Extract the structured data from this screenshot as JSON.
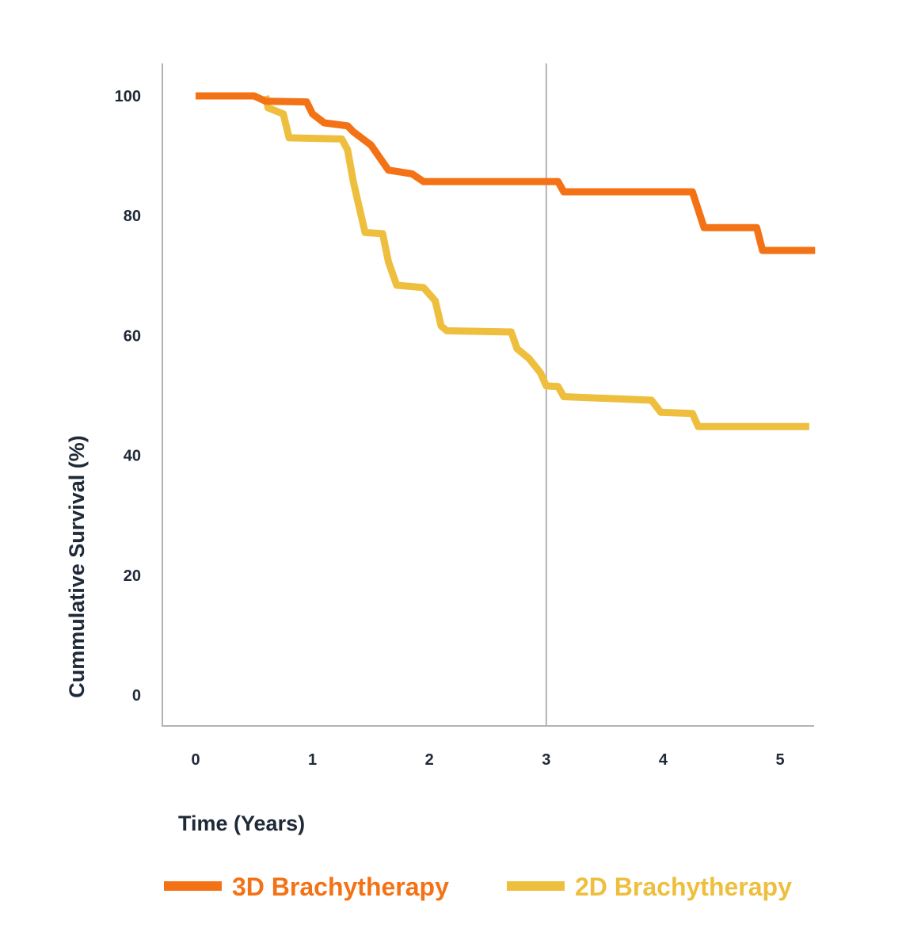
{
  "chart_data": {
    "type": "line",
    "title": "",
    "xlabel": "Time (Years)",
    "ylabel": "Cummulative Survival (%)",
    "xlim": [
      0,
      5.3
    ],
    "ylim": [
      0,
      100
    ],
    "xticks": [
      "0",
      "1",
      "2",
      "3",
      "4",
      "5"
    ],
    "yticks": [
      "0",
      "20",
      "40",
      "60",
      "80",
      "100"
    ],
    "grid": false,
    "reference_line_x": 3,
    "legend_position": "bottom",
    "series": [
      {
        "name": "3D Brachytherapy",
        "color": "#F47216",
        "points": [
          [
            0,
            100
          ],
          [
            0.5,
            100
          ],
          [
            0.6,
            99.1
          ],
          [
            0.95,
            99
          ],
          [
            1.0,
            97
          ],
          [
            1.1,
            95.5
          ],
          [
            1.3,
            95
          ],
          [
            1.35,
            94
          ],
          [
            1.5,
            91.8
          ],
          [
            1.65,
            87.6
          ],
          [
            1.85,
            87
          ],
          [
            1.95,
            85.7
          ],
          [
            3.1,
            85.7
          ],
          [
            3.15,
            84
          ],
          [
            4.25,
            84
          ],
          [
            4.3,
            81
          ],
          [
            4.35,
            78
          ],
          [
            4.8,
            78
          ],
          [
            4.85,
            74.2
          ],
          [
            5.3,
            74.2
          ]
        ]
      },
      {
        "name": "2D Brachytherapy",
        "color": "#EEBF3E",
        "points": [
          [
            0.6,
            100
          ],
          [
            0.62,
            98
          ],
          [
            0.75,
            97
          ],
          [
            0.8,
            93
          ],
          [
            1.25,
            92.8
          ],
          [
            1.3,
            91
          ],
          [
            1.35,
            85.6
          ],
          [
            1.45,
            77.2
          ],
          [
            1.6,
            77
          ],
          [
            1.65,
            72.3
          ],
          [
            1.72,
            68.4
          ],
          [
            1.95,
            68
          ],
          [
            2.05,
            65.8
          ],
          [
            2.1,
            61.6
          ],
          [
            2.15,
            60.8
          ],
          [
            2.7,
            60.6
          ],
          [
            2.75,
            57.8
          ],
          [
            2.85,
            56.2
          ],
          [
            2.95,
            53.8
          ],
          [
            3.0,
            51.6
          ],
          [
            3.1,
            51.5
          ],
          [
            3.15,
            49.8
          ],
          [
            3.9,
            49.2
          ],
          [
            3.98,
            47.2
          ],
          [
            4.25,
            47
          ],
          [
            4.3,
            44.8
          ],
          [
            5.25,
            44.8
          ]
        ]
      }
    ]
  }
}
